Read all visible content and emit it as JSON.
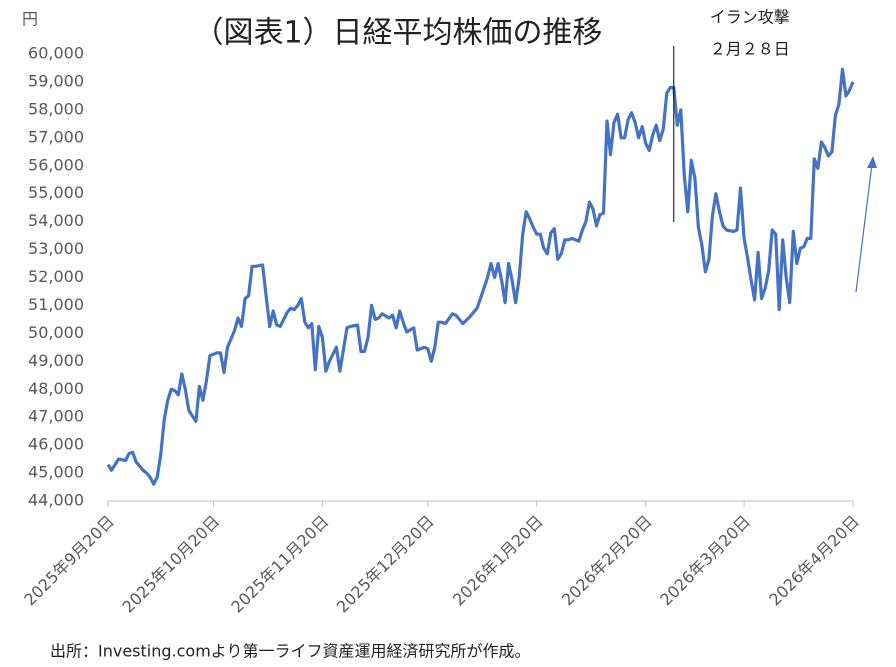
{
  "chart_data": {
    "type": "line",
    "title": "（図表1）日経平均株価の推移",
    "y_unit": "円",
    "source": "出所：Investing.comより第一ライフ資産運用経済研究所が作成。",
    "annotation": {
      "lines": [
        "イラン攻撃",
        "２月２８日"
      ],
      "x": "2026-02-28"
    },
    "color": "#4472c4",
    "x": [
      "2025-09-20",
      "2025-09-21",
      "2025-09-23",
      "2025-09-25",
      "2025-09-26",
      "2025-09-27",
      "2025-09-28",
      "2025-09-30",
      "2025-10-01",
      "2025-10-02",
      "2025-10-03",
      "2025-10-04",
      "2025-10-05",
      "2025-10-06",
      "2025-10-07",
      "2025-10-08",
      "2025-10-09",
      "2025-10-10",
      "2025-10-11",
      "2025-10-12",
      "2025-10-13",
      "2025-10-14",
      "2025-10-15",
      "2025-10-16",
      "2025-10-17",
      "2025-10-18",
      "2025-10-19",
      "2025-10-21",
      "2025-10-22",
      "2025-10-23",
      "2025-10-24",
      "2025-10-26",
      "2025-10-27",
      "2025-10-28",
      "2025-10-29",
      "2025-10-30",
      "2025-10-31",
      "2025-11-01",
      "2025-11-03",
      "2025-11-04",
      "2025-11-05",
      "2025-11-06",
      "2025-11-07",
      "2025-11-08",
      "2025-11-10",
      "2025-11-11",
      "2025-11-12",
      "2025-11-13",
      "2025-11-14",
      "2025-11-15",
      "2025-11-16",
      "2025-11-17",
      "2025-11-18",
      "2025-11-19",
      "2025-11-20",
      "2025-11-21",
      "2025-11-22",
      "2025-11-24",
      "2025-11-25",
      "2025-11-27",
      "2025-11-28",
      "2025-11-30",
      "2025-12-01",
      "2025-12-02",
      "2025-12-03",
      "2025-12-04",
      "2025-12-05",
      "2025-12-06",
      "2025-12-07",
      "2025-12-09",
      "2025-12-10",
      "2025-12-11",
      "2025-12-12",
      "2025-12-13",
      "2025-12-14",
      "2025-12-16",
      "2025-12-17",
      "2025-12-19",
      "2025-12-20",
      "2025-12-21",
      "2025-12-22",
      "2025-12-23",
      "2025-12-24",
      "2025-12-25",
      "2025-12-27",
      "2025-12-28",
      "2025-12-30",
      "2026-01-01",
      "2026-01-03",
      "2026-01-04",
      "2026-01-06",
      "2026-01-07",
      "2026-01-08",
      "2026-01-09",
      "2026-01-10",
      "2026-01-11",
      "2026-01-12",
      "2026-01-13",
      "2026-01-14",
      "2026-01-15",
      "2026-01-16",
      "2026-01-17",
      "2026-01-18",
      "2026-01-19",
      "2026-01-20",
      "2026-01-21",
      "2026-01-22",
      "2026-01-23",
      "2026-01-24",
      "2026-01-25",
      "2026-01-26",
      "2026-01-27",
      "2026-01-28",
      "2026-01-29",
      "2026-01-30",
      "2026-02-01",
      "2026-02-02",
      "2026-02-03",
      "2026-02-04",
      "2026-02-05",
      "2026-02-06",
      "2026-02-07",
      "2026-02-08",
      "2026-02-09",
      "2026-02-10",
      "2026-02-11",
      "2026-02-12",
      "2026-02-13",
      "2026-02-14",
      "2026-02-15",
      "2026-02-16",
      "2026-02-17",
      "2026-02-18",
      "2026-02-19",
      "2026-02-20",
      "2026-02-21",
      "2026-02-22",
      "2026-02-23",
      "2026-02-24",
      "2026-02-25",
      "2026-02-26",
      "2026-02-27",
      "2026-02-28",
      "2026-03-01",
      "2026-03-02",
      "2026-03-03",
      "2026-03-04",
      "2026-03-05",
      "2026-03-06",
      "2026-03-07",
      "2026-03-08",
      "2026-03-09",
      "2026-03-10",
      "2026-03-11",
      "2026-03-12",
      "2026-03-13",
      "2026-03-14",
      "2026-03-15",
      "2026-03-17",
      "2026-03-18",
      "2026-03-19",
      "2026-03-20",
      "2026-03-21",
      "2026-03-22",
      "2026-03-23",
      "2026-03-24",
      "2026-03-25",
      "2026-03-26",
      "2026-03-27",
      "2026-03-28",
      "2026-03-29",
      "2026-03-30",
      "2026-03-31",
      "2026-04-01",
      "2026-04-02",
      "2026-04-03",
      "2026-04-04",
      "2026-04-05",
      "2026-04-06",
      "2026-04-07",
      "2026-04-08",
      "2026-04-09",
      "2026-04-10",
      "2026-04-11",
      "2026-04-12",
      "2026-04-13",
      "2026-04-14",
      "2026-04-15",
      "2026-04-16",
      "2026-04-17",
      "2026-04-18",
      "2026-04-19",
      "2026-04-20"
    ],
    "values": [
      45300,
      45100,
      45500,
      45450,
      45700,
      45750,
      45400,
      45100,
      45000,
      44850,
      44600,
      44850,
      45650,
      46900,
      47600,
      48000,
      47950,
      47800,
      48550,
      48000,
      47250,
      47050,
      46850,
      48100,
      47600,
      48300,
      49200,
      49300,
      49300,
      48600,
      49500,
      50100,
      50550,
      50250,
      51250,
      51350,
      52400,
      52400,
      52450,
      51350,
      50250,
      50800,
      50300,
      50250,
      50750,
      50900,
      50850,
      51000,
      51250,
      50400,
      50200,
      50350,
      48700,
      50250,
      49850,
      48650,
      49000,
      49500,
      48650,
      50200,
      50250,
      50300,
      49350,
      49350,
      49850,
      51000,
      50500,
      50550,
      50700,
      50550,
      50650,
      50200,
      50800,
      50400,
      50050,
      50200,
      49400,
      49500,
      49450,
      49000,
      49500,
      50400,
      50400,
      50350,
      50700,
      50650,
      50350,
      50600,
      50900,
      51250,
      52000,
      52500,
      52000,
      52500,
      51900,
      51100,
      52500,
      51900,
      51100,
      52000,
      53550,
      54350,
      54100,
      53800,
      53550,
      53550,
      53050,
      52850,
      53600,
      53750,
      52650,
      52850,
      53350,
      53350,
      53400,
      53300,
      53700,
      54000,
      54700,
      54450,
      53850,
      54250,
      54300,
      57600,
      56400,
      57550,
      57850,
      57000,
      57000,
      57650,
      57900,
      57550,
      57000,
      57400,
      56800,
      56550,
      57100,
      57450,
      56900,
      57300,
      58600,
      58800,
      58800,
      57450,
      58000,
      55650,
      54350,
      56200,
      55550,
      53800,
      53150,
      52200,
      52650,
      54200,
      55000,
      54350,
      53850,
      53700,
      53650,
      53700,
      55200,
      53400,
      52700,
      51900,
      51200,
      52900,
      51250,
      51600,
      52250,
      53700,
      53550,
      50850,
      53350,
      52000,
      51100,
      53650,
      52500,
      53050,
      53100,
      53400,
      53400,
      56250,
      55900,
      56850,
      56650,
      56350,
      56500,
      57800,
      58200,
      59450,
      58500,
      58700,
      59000
    ],
    "xlim": [
      "2025-09-20",
      "2026-04-20"
    ],
    "xticks": [
      {
        "value": "2025-09-20",
        "label": "2025年9月20日"
      },
      {
        "value": "2025-10-20",
        "label": "2025年10月20日"
      },
      {
        "value": "2025-11-20",
        "label": "2025年11月20日"
      },
      {
        "value": "2025-12-20",
        "label": "2025年12月20日"
      },
      {
        "value": "2026-01-20",
        "label": "2026年1月20日"
      },
      {
        "value": "2026-02-20",
        "label": "2026年2月20日"
      },
      {
        "value": "2026-03-20",
        "label": "2026年3月20日"
      },
      {
        "value": "2026-04-20",
        "label": "2026年4月20日"
      }
    ],
    "ylim": [
      44000,
      60000
    ],
    "yticks": [
      {
        "value": 44000,
        "label": "44,000"
      },
      {
        "value": 45000,
        "label": "45,000"
      },
      {
        "value": 46000,
        "label": "46,000"
      },
      {
        "value": 47000,
        "label": "47,000"
      },
      {
        "value": 48000,
        "label": "48,000"
      },
      {
        "value": 49000,
        "label": "49,000"
      },
      {
        "value": 50000,
        "label": "50,000"
      },
      {
        "value": 51000,
        "label": "51,000"
      },
      {
        "value": 52000,
        "label": "52,000"
      },
      {
        "value": 53000,
        "label": "53,000"
      },
      {
        "value": 54000,
        "label": "54,000"
      },
      {
        "value": 55000,
        "label": "55,000"
      },
      {
        "value": 56000,
        "label": "56,000"
      },
      {
        "value": 57000,
        "label": "57,000"
      },
      {
        "value": 58000,
        "label": "58,000"
      },
      {
        "value": 59000,
        "label": "59,000"
      },
      {
        "value": 60000,
        "label": "60,000"
      }
    ],
    "grid": false
  }
}
